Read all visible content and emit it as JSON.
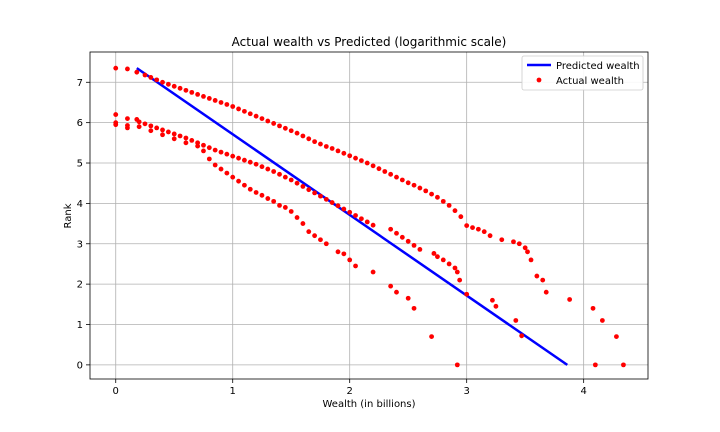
{
  "chart_data": {
    "type": "scatter",
    "title": "Actual wealth vs Predicted (logarithmic scale)",
    "xlabel": "Wealth (in billions)",
    "ylabel": "Rank",
    "xlim": [
      -0.22,
      4.55
    ],
    "ylim": [
      -0.35,
      7.75
    ],
    "x_ticks": [
      0,
      1,
      2,
      3,
      4
    ],
    "y_ticks": [
      0,
      1,
      2,
      3,
      4,
      5,
      6,
      7
    ],
    "grid": true,
    "legend_position": "top-right",
    "colors": {
      "predicted": "#0000ff",
      "actual": "#ff0000"
    },
    "series": [
      {
        "name": "Predicted wealth",
        "kind": "line",
        "x": [
          0.18,
          3.86
        ],
        "y": [
          7.35,
          0.0
        ]
      },
      {
        "name": "Actual wealth",
        "kind": "scatter",
        "x": [
          0,
          0,
          0,
          0,
          0.1,
          0.1,
          0.1,
          0.1,
          0.18,
          0.18,
          0.25,
          0.3,
          0.35,
          0.4,
          0.45,
          0.5,
          0.55,
          0.6,
          0.65,
          0.7,
          0.75,
          0.8,
          0.85,
          0.9,
          0.95,
          1.0,
          1.05,
          1.1,
          1.15,
          1.2,
          1.25,
          1.3,
          1.35,
          1.4,
          1.45,
          1.5,
          1.55,
          1.6,
          1.65,
          1.7,
          1.75,
          1.8,
          1.85,
          1.9,
          1.95,
          2.0,
          2.05,
          2.1,
          2.15,
          2.2,
          2.25,
          2.3,
          2.35,
          2.4,
          2.45,
          2.5,
          2.55,
          2.6,
          2.65,
          2.7,
          2.75,
          2.8,
          2.85,
          2.9,
          2.95,
          3.0,
          3.05,
          3.1,
          3.15,
          3.2,
          3.3,
          3.4,
          3.45,
          3.5,
          3.52,
          3.55,
          3.6,
          3.65,
          3.68,
          0.2,
          0.25,
          0.3,
          0.35,
          0.4,
          0.45,
          0.5,
          0.55,
          0.6,
          0.65,
          0.7,
          0.75,
          0.8,
          0.85,
          0.9,
          0.95,
          1.0,
          1.05,
          1.1,
          1.15,
          1.2,
          1.25,
          1.3,
          1.35,
          1.4,
          1.45,
          1.5,
          1.55,
          1.6,
          1.65,
          1.7,
          1.75,
          1.8,
          1.85,
          1.9,
          1.95,
          2.0,
          2.05,
          2.1,
          2.15,
          2.2,
          2.35,
          2.4,
          2.45,
          2.5,
          2.55,
          2.6,
          2.72,
          2.75,
          2.8,
          2.85,
          2.9,
          2.92,
          2.94,
          0.2,
          0.3,
          0.4,
          0.5,
          0.6,
          0.7,
          0.75,
          0.8,
          0.85,
          0.9,
          0.95,
          1.0,
          1.05,
          1.1,
          1.15,
          1.2,
          1.25,
          1.3,
          1.35,
          1.4,
          1.45,
          1.5,
          1.55,
          1.6,
          1.65,
          1.7,
          1.75,
          1.8,
          1.9,
          1.95,
          2.0,
          2.05,
          2.2,
          2.35,
          2.4,
          2.5,
          2.55,
          2.7,
          2.92,
          3.0,
          3.22,
          3.25,
          3.42,
          3.47,
          3.88,
          4.08,
          4.1,
          4.16,
          4.28,
          4.34
        ],
        "y": [
          7.35,
          6.2,
          6.0,
          5.95,
          7.33,
          6.1,
          5.93,
          5.87,
          7.25,
          6.08,
          7.18,
          7.12,
          7.06,
          7.0,
          6.95,
          6.9,
          6.85,
          6.8,
          6.75,
          6.7,
          6.65,
          6.6,
          6.55,
          6.5,
          6.45,
          6.4,
          6.34,
          6.28,
          6.22,
          6.16,
          6.1,
          6.04,
          5.98,
          5.92,
          5.86,
          5.8,
          5.74,
          5.67,
          5.6,
          5.53,
          5.47,
          5.41,
          5.36,
          5.3,
          5.24,
          5.18,
          5.12,
          5.06,
          5.0,
          4.93,
          4.86,
          4.79,
          4.72,
          4.65,
          4.58,
          4.51,
          4.45,
          4.38,
          4.31,
          4.23,
          4.15,
          4.05,
          3.95,
          3.82,
          3.67,
          3.45,
          3.4,
          3.36,
          3.3,
          3.2,
          3.1,
          3.05,
          3.0,
          2.9,
          2.8,
          2.6,
          2.2,
          2.1,
          1.8,
          6.02,
          5.97,
          5.92,
          5.87,
          5.82,
          5.77,
          5.72,
          5.67,
          5.62,
          5.56,
          5.5,
          5.44,
          5.38,
          5.32,
          5.27,
          5.22,
          5.17,
          5.12,
          5.07,
          5.02,
          4.97,
          4.91,
          4.85,
          4.79,
          4.72,
          4.65,
          4.58,
          4.5,
          4.42,
          4.34,
          4.26,
          4.18,
          4.1,
          4.02,
          3.94,
          3.86,
          3.78,
          3.7,
          3.62,
          3.54,
          3.46,
          3.36,
          3.26,
          3.16,
          3.06,
          2.96,
          2.86,
          2.76,
          2.68,
          2.6,
          2.5,
          2.4,
          2.3,
          2.1,
          5.9,
          5.8,
          5.7,
          5.6,
          5.5,
          5.42,
          5.3,
          5.1,
          4.95,
          4.85,
          4.75,
          4.65,
          4.55,
          4.45,
          4.35,
          4.27,
          4.2,
          4.12,
          4.05,
          3.95,
          3.9,
          3.8,
          3.65,
          3.5,
          3.3,
          3.2,
          3.1,
          3.0,
          2.8,
          2.75,
          2.6,
          2.45,
          2.3,
          1.95,
          1.8,
          1.65,
          1.4,
          0.7,
          0.0,
          1.75,
          1.6,
          1.45,
          1.1,
          0.72,
          1.62,
          1.4,
          0.0,
          1.1,
          0.7,
          0.0
        ]
      }
    ]
  }
}
